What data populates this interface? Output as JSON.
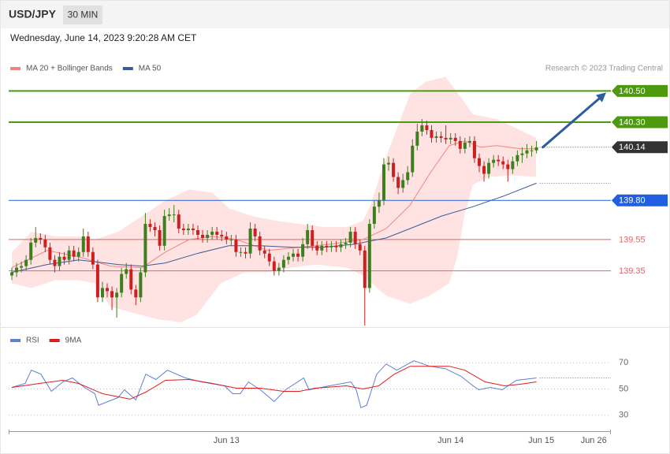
{
  "header": {
    "symbol": "USD/JPY",
    "interval": "30 MIN",
    "timestamp": "Wednesday, June 14, 2023 9:20:28 AM CET"
  },
  "chart_data": [
    {
      "type": "candlestick",
      "annotation": "Research © 2023 Trading Central",
      "xlim": [
        -0.66,
        125.6
      ],
      "ylim": [
        138.99,
        140.9
      ],
      "up_color": "#3d7f1f",
      "down_color": "#cc2020",
      "open": [
        139.32,
        139.34,
        139.37,
        139.38,
        139.42,
        139.53,
        139.56,
        139.55,
        139.5,
        139.42,
        139.38,
        139.44,
        139.42,
        139.48,
        139.44,
        139.47,
        139.57,
        139.47,
        139.39,
        139.18,
        139.24,
        139.22,
        139.18,
        139.21,
        139.33,
        139.36,
        139.23,
        139.18,
        139.34,
        139.65,
        139.63,
        139.61,
        139.51,
        139.7,
        139.71,
        139.71,
        139.62,
        139.61,
        139.62,
        139.61,
        139.58,
        139.56,
        139.58,
        139.6,
        139.58,
        139.57,
        139.55,
        139.55,
        139.47,
        139.47,
        139.46,
        139.62,
        139.57,
        139.48,
        139.46,
        139.41,
        139.35,
        139.37,
        139.42,
        139.44,
        139.46,
        139.44,
        139.52,
        139.61,
        139.51,
        139.48,
        139.51,
        139.5,
        139.51,
        139.5,
        139.52,
        139.53,
        139.6,
        139.52,
        139.48,
        139.24,
        139.65,
        139.76,
        139.8,
        140.03,
        140.04,
        139.95,
        139.88,
        139.93,
        139.98,
        140.15,
        140.24,
        140.28,
        140.25,
        140.2,
        140.21,
        140.2,
        140.19,
        140.2,
        140.18,
        140.13,
        140.17,
        140.18,
        140.07,
        140.02,
        139.97,
        140.04,
        140.06,
        140.05,
        140.03,
        140.0,
        140.05,
        140.09,
        140.1,
        140.12,
        140.12
      ],
      "high": [
        139.37,
        139.4,
        139.41,
        139.45,
        139.56,
        139.63,
        139.59,
        139.58,
        139.53,
        139.45,
        139.47,
        139.47,
        139.51,
        139.51,
        139.5,
        139.62,
        139.6,
        139.5,
        139.42,
        139.28,
        139.27,
        139.25,
        139.24,
        139.37,
        139.4,
        139.39,
        139.26,
        139.37,
        139.72,
        139.68,
        139.66,
        139.64,
        139.74,
        139.75,
        139.77,
        139.74,
        139.65,
        139.65,
        139.65,
        139.64,
        139.61,
        139.61,
        139.63,
        139.63,
        139.61,
        139.6,
        139.58,
        139.58,
        139.5,
        139.5,
        139.66,
        139.65,
        139.6,
        139.51,
        139.49,
        139.44,
        139.4,
        139.45,
        139.47,
        139.49,
        139.49,
        139.56,
        139.65,
        139.64,
        139.54,
        139.54,
        139.54,
        139.54,
        139.54,
        139.55,
        139.56,
        139.63,
        139.63,
        139.55,
        139.51,
        139.68,
        139.8,
        139.85,
        140.07,
        140.08,
        140.07,
        139.98,
        139.97,
        140.02,
        140.19,
        140.29,
        140.32,
        140.31,
        140.28,
        140.24,
        140.24,
        140.28,
        140.23,
        140.23,
        140.21,
        140.2,
        140.21,
        140.21,
        140.1,
        140.05,
        140.07,
        140.09,
        140.09,
        140.08,
        140.06,
        140.08,
        140.12,
        140.14,
        140.16,
        140.15,
        140.18
      ],
      "low": [
        139.29,
        139.31,
        139.34,
        139.35,
        139.39,
        139.5,
        139.52,
        139.47,
        139.39,
        139.34,
        139.35,
        139.39,
        139.39,
        139.41,
        139.41,
        139.44,
        139.44,
        139.36,
        139.15,
        139.15,
        139.18,
        139.1,
        139.05,
        139.18,
        139.3,
        139.2,
        139.13,
        139.15,
        139.31,
        139.6,
        139.57,
        139.48,
        139.48,
        139.67,
        139.66,
        139.59,
        139.58,
        139.58,
        139.58,
        139.55,
        139.53,
        139.53,
        139.55,
        139.55,
        139.54,
        139.52,
        139.51,
        139.44,
        139.44,
        139.43,
        139.43,
        139.54,
        139.45,
        139.43,
        139.38,
        139.32,
        139.32,
        139.34,
        139.39,
        139.41,
        139.41,
        139.41,
        139.49,
        139.48,
        139.45,
        139.45,
        139.47,
        139.47,
        139.47,
        139.47,
        139.49,
        139.5,
        139.49,
        139.45,
        139.0,
        139.21,
        139.62,
        139.72,
        139.77,
        139.99,
        139.92,
        139.84,
        139.85,
        139.9,
        139.95,
        140.12,
        140.21,
        140.22,
        140.17,
        140.17,
        140.17,
        140.16,
        140.16,
        140.15,
        140.1,
        140.1,
        140.14,
        140.04,
        139.98,
        139.92,
        139.94,
        140.01,
        140.02,
        140.0,
        139.92,
        139.97,
        140.02,
        140.04,
        140.07,
        140.08,
        140.1
      ],
      "close": [
        139.34,
        139.37,
        139.38,
        139.42,
        139.53,
        139.56,
        139.55,
        139.5,
        139.42,
        139.38,
        139.44,
        139.42,
        139.48,
        139.44,
        139.47,
        139.57,
        139.47,
        139.39,
        139.18,
        139.24,
        139.22,
        139.18,
        139.21,
        139.33,
        139.36,
        139.23,
        139.18,
        139.34,
        139.65,
        139.63,
        139.61,
        139.51,
        139.7,
        139.71,
        139.71,
        139.62,
        139.61,
        139.62,
        139.61,
        139.58,
        139.56,
        139.58,
        139.6,
        139.58,
        139.57,
        139.55,
        139.55,
        139.47,
        139.47,
        139.46,
        139.62,
        139.57,
        139.48,
        139.46,
        139.41,
        139.35,
        139.37,
        139.42,
        139.44,
        139.46,
        139.44,
        139.52,
        139.61,
        139.51,
        139.48,
        139.51,
        139.5,
        139.51,
        139.5,
        139.52,
        139.53,
        139.6,
        139.52,
        139.48,
        139.24,
        139.65,
        139.76,
        139.8,
        140.03,
        140.04,
        139.95,
        139.88,
        139.93,
        139.98,
        140.15,
        140.24,
        140.28,
        140.25,
        140.2,
        140.21,
        140.2,
        140.19,
        140.2,
        140.18,
        140.13,
        140.17,
        140.18,
        140.07,
        140.02,
        139.97,
        140.04,
        140.06,
        140.05,
        140.03,
        140.0,
        140.05,
        140.09,
        140.1,
        140.12,
        140.12,
        140.14
      ],
      "series": [
        {
          "name": "MA 20 + Bollinger Bands",
          "color": "#f4837d",
          "band_color": "#ffdede",
          "x": [
            0,
            7.4,
            14,
            20.7,
            27.3,
            32.2,
            37.2,
            42.1,
            47.1,
            53.7,
            60.3,
            66.9,
            73.6,
            78.5,
            83.5,
            87.6,
            91.7,
            95,
            98.3,
            101.7,
            106.6,
            109.9
          ],
          "values": [
            139.37,
            139.48,
            139.44,
            139.38,
            139.37,
            139.47,
            139.55,
            139.57,
            139.55,
            139.48,
            139.5,
            139.52,
            139.55,
            139.62,
            139.77,
            139.97,
            140.15,
            140.18,
            140.14,
            140.15,
            140.13,
            140.13
          ],
          "band_upper": {
            "x": [
              0,
              4.1,
              9.1,
              14,
              17.4,
              22.3,
              27.3,
              32.2,
              37.2,
              42.1,
              45.5,
              50.4,
              55.4,
              60.3,
              65.3,
              70.2,
              73.6,
              75.2,
              78.5,
              83.5,
              86.8,
              90.9,
              93.4,
              96.7,
              101.7,
              106.6,
              109.9
            ],
            "values": [
              139.47,
              139.6,
              139.57,
              139.57,
              139.55,
              139.6,
              139.7,
              139.8,
              139.87,
              139.85,
              139.75,
              139.7,
              139.67,
              139.65,
              139.63,
              139.63,
              139.67,
              139.77,
              140.08,
              140.48,
              140.56,
              140.59,
              140.49,
              140.35,
              140.32,
              140.25,
              140.2
            ]
          },
          "band_lower": {
            "x": [
              0,
              4.1,
              9.1,
              14,
              17.4,
              20.7,
              25.6,
              30.6,
              35.5,
              38.8,
              43.8,
              48.8,
              53.7,
              58.7,
              63.6,
              70.2,
              73.6,
              78.5,
              83.5,
              87.6,
              91.7,
              93.4,
              95,
              96.7,
              100,
              105,
              109.9
            ],
            "values": [
              139.27,
              139.24,
              139.29,
              139.29,
              139.27,
              139.12,
              139.08,
              139.04,
              139.02,
              139.07,
              139.27,
              139.34,
              139.34,
              139.37,
              139.39,
              139.37,
              139.32,
              139.19,
              139.14,
              139.19,
              139.27,
              139.44,
              139.72,
              139.9,
              139.95,
              139.96,
              139.95
            ]
          }
        },
        {
          "name": "MA 50",
          "color": "#3b5a99",
          "x": [
            0,
            7.4,
            14,
            22.3,
            27.3,
            32.2,
            38.8,
            45.5,
            52.1,
            58.7,
            65.3,
            71.9,
            78.5,
            83.5,
            90.1,
            96.7,
            103.3,
            110
          ],
          "values": [
            139.34,
            139.39,
            139.42,
            139.39,
            139.38,
            139.4,
            139.46,
            139.51,
            139.51,
            139.5,
            139.5,
            139.52,
            139.56,
            139.62,
            139.7,
            139.76,
            139.83,
            139.91
          ]
        }
      ],
      "levels": [
        {
          "value": 140.5,
          "label": "140.50",
          "color": "#4d9a0f",
          "line": "solid",
          "tag": true
        },
        {
          "value": 140.3,
          "label": "140.30",
          "color": "#4d9a0f",
          "line": "solid",
          "tag": true
        },
        {
          "value": 140.14,
          "label": "140.14",
          "color": "#333333",
          "line": "dotted",
          "tag": true
        },
        {
          "value": 139.8,
          "label": "139.80",
          "color": "#1f5fe0",
          "line": "solid",
          "tag": true
        },
        {
          "value": 139.55,
          "label": "139.55",
          "color": "#e06666",
          "line": "solid",
          "tag": false
        },
        {
          "value": 139.35,
          "label": "139.35",
          "color": "#e06666",
          "line": "solid",
          "tag": false
        }
      ],
      "arrow_color": "#2e5d9f"
    },
    {
      "type": "line",
      "xlim": [
        -0.66,
        125.6
      ],
      "ylim": [
        19.6,
        94.2
      ],
      "yticks": [
        70,
        50,
        30
      ],
      "grid": true,
      "xticks": [
        {
          "value": 45,
          "label": "Jun 13"
        },
        {
          "value": 92,
          "label": "Jun 14"
        },
        {
          "value": 111,
          "label": "Jun 15"
        },
        {
          "value": 122,
          "label": "Jun 26"
        }
      ],
      "series": [
        {
          "name": "RSI",
          "color": "#5b80d8",
          "x": [
            0,
            2.8,
            4.1,
            6.1,
            8.3,
            10.7,
            12.7,
            15.2,
            17.4,
            18.2,
            20.2,
            22.3,
            23.6,
            26,
            28.1,
            30.2,
            32.6,
            36.4,
            39.7,
            44.6,
            46.3,
            47.9,
            49.6,
            52.1,
            55,
            57.4,
            61.2,
            62.3,
            66.6,
            71.1,
            72.2,
            73.2,
            74.4,
            76.5,
            78.5,
            80.7,
            84.3,
            87.6,
            90.9,
            94.2,
            96.7,
            97.9,
            100.3,
            102.8,
            105.8,
            110
          ],
          "values": [
            51.2,
            54.2,
            64.3,
            61.3,
            48.2,
            55.4,
            58.4,
            51.2,
            46.4,
            37.5,
            40.4,
            43.4,
            49.4,
            41.6,
            61.3,
            57.2,
            64.3,
            58.4,
            55.4,
            52.4,
            46.4,
            46.4,
            55.4,
            49.4,
            40.4,
            49.4,
            58.4,
            49.4,
            52.4,
            55.4,
            49.4,
            35.7,
            37.5,
            61.3,
            69.1,
            64.3,
            71.5,
            67.3,
            65.5,
            59.6,
            52.4,
            49.4,
            51.2,
            49.4,
            56.6,
            58.4
          ]
        },
        {
          "name": "9MA",
          "color": "#e01b1b",
          "x": [
            0,
            5.8,
            10.7,
            14,
            19,
            24.8,
            28.1,
            32.2,
            37.2,
            42.1,
            47.1,
            52.1,
            57,
            60.3,
            63.6,
            70.2,
            73.6,
            76.9,
            80.2,
            83.5,
            87.6,
            91.7,
            95,
            99.2,
            103.3,
            106.6,
            110
          ],
          "values": [
            51.2,
            54.2,
            56.6,
            54.2,
            46.4,
            42.2,
            47.6,
            56.6,
            57.2,
            54.2,
            50.6,
            50.6,
            48.2,
            48.2,
            50.6,
            52.4,
            50,
            52.4,
            61.3,
            67.3,
            67.3,
            67.3,
            64.3,
            55.4,
            52.4,
            53.6,
            55.4
          ]
        }
      ]
    }
  ]
}
